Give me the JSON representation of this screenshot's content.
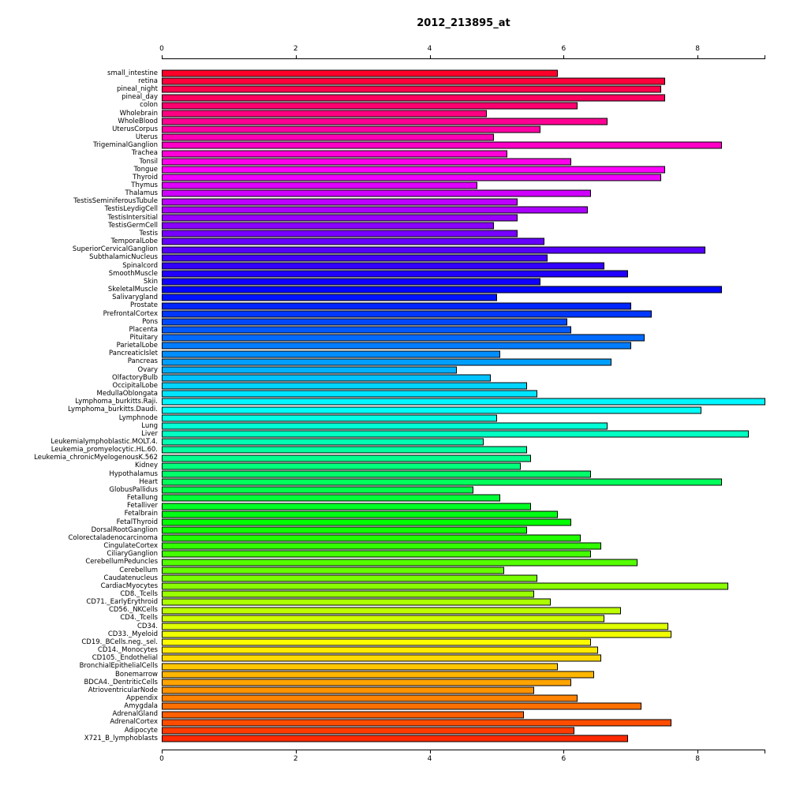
{
  "chart_data": {
    "type": "bar",
    "orientation": "horizontal",
    "title": "2012_213895_at",
    "xlabel": "",
    "ylabel": "",
    "xlim": [
      0,
      9
    ],
    "x_ticks": [
      0,
      2,
      4,
      6,
      8
    ],
    "grid": false,
    "legend": "none",
    "palette": {
      "type": "reversed-rainbow",
      "hue_start": 350,
      "hue_end": 10,
      "saturation": 100,
      "lightness": 50,
      "bar_border": "#000000",
      "axis_color": "#000000",
      "background": "#ffffff"
    },
    "categories": [
      "small_intestine",
      "retina",
      "pineal_night",
      "pineal_day",
      "colon",
      "Wholebrain",
      "WholeBlood",
      "UterusCorpus",
      "Uterus",
      "TrigeminalGanglion",
      "Trachea",
      "Tonsil",
      "Tongue",
      "Thyroid",
      "Thymus",
      "Thalamus",
      "TestisSeminiferousTubule",
      "TestisLeydigCell",
      "TestisIntersitial",
      "TestisGermCell",
      "Testis",
      "TemporalLobe",
      "SuperiorCervicalGanglion",
      "SubthalamicNucleus",
      "Spinalcord",
      "SmoothMuscle",
      "Skin",
      "SkeletalMuscle",
      "Salivarygland",
      "Prostate",
      "PrefrontalCortex",
      "Pons",
      "Placenta",
      "Pituitary",
      "ParietalLobe",
      "PancreaticIslet",
      "Pancreas",
      "Ovary",
      "OlfactoryBulb",
      "OccipitalLobe",
      "MedullaOblongata",
      "Lymphoma_burkitts.Raji.",
      "Lymphoma_burkitts.Daudi.",
      "Lymphnode",
      "Lung",
      "Liver",
      "Leukemialymphoblastic.MOLT.4.",
      "Leukemia_promyelocytic.HL.60.",
      "Leukemia_chronicMyelogenousK.562",
      "Kidney",
      "Hypothalamus",
      "Heart",
      "GlobusPallidus",
      "Fetallung",
      "Fetalliver",
      "Fetalbrain",
      "FetalThyroid",
      "DorsalRootGanglion",
      "Colorectaladenocarcinoma",
      "CingulateCortex",
      "CiliaryGanglion",
      "CerebellumPeduncles",
      "Cerebellum",
      "Caudatenucleus",
      "CardiacMyocytes",
      "CD8._Tcells",
      "CD71._EarlyErythroid",
      "CD56._NKCells",
      "CD4._Tcells",
      "CD34.",
      "CD33._Myeloid",
      "CD19._BCells.neg._sel.",
      "CD14._Monocytes",
      "CD105._Endothelial",
      "BronchialEpithelialCells",
      "Bonemarrow",
      "BDCA4._DentriticCells",
      "AtrioventricularNode",
      "Appendix",
      "Amygdala",
      "AdrenalGland",
      "AdrenalCortex",
      "Adipocyte",
      "X721_B_lymphoblasts"
    ],
    "values": [
      5.9,
      7.5,
      7.45,
      7.5,
      6.2,
      4.85,
      6.65,
      5.65,
      4.95,
      8.35,
      5.15,
      6.1,
      7.5,
      7.45,
      4.7,
      6.4,
      5.3,
      6.35,
      5.3,
      4.95,
      5.3,
      5.7,
      8.1,
      5.75,
      6.6,
      6.95,
      5.65,
      8.35,
      5.0,
      7.0,
      7.3,
      6.05,
      6.1,
      7.2,
      7.0,
      5.05,
      6.7,
      4.4,
      4.9,
      5.45,
      5.6,
      9.0,
      8.05,
      5.0,
      6.65,
      8.75,
      4.8,
      5.45,
      5.5,
      5.35,
      6.4,
      8.35,
      4.65,
      5.05,
      5.5,
      5.9,
      6.1,
      5.45,
      6.25,
      6.55,
      6.4,
      7.1,
      5.1,
      5.6,
      8.45,
      5.55,
      5.8,
      6.85,
      6.6,
      7.55,
      7.6,
      6.4,
      6.5,
      6.55,
      5.9,
      6.45,
      6.1,
      5.55,
      6.2,
      7.15,
      5.4,
      7.6,
      6.15,
      6.95
    ]
  }
}
